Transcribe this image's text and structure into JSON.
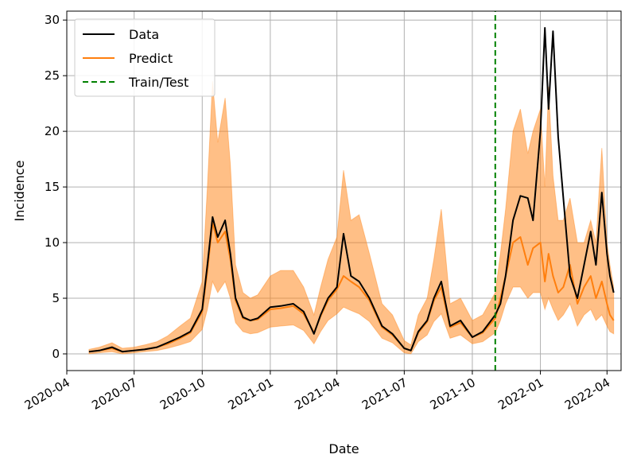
{
  "chart_data": {
    "type": "line",
    "title": "",
    "xlabel": "Date",
    "ylabel": "Incidence",
    "xlim": [
      "2020-04-01",
      "2022-04-20"
    ],
    "ylim": [
      -1.5,
      30.8
    ],
    "grid": true,
    "legend_position": "top-left",
    "x_ticks": [
      "2020-04",
      "2020-07",
      "2020-10",
      "2021-01",
      "2021-04",
      "2021-07",
      "2021-10",
      "2022-01",
      "2022-04"
    ],
    "y_ticks": [
      0,
      5,
      10,
      15,
      20,
      25,
      30
    ],
    "split_date": "2021-11-01",
    "colors": {
      "data": "#000000",
      "predict": "#ff7f0e",
      "band": "#ff7f0e",
      "split": "#008000",
      "grid": "#b0b0b0"
    },
    "series": [
      {
        "name": "Data",
        "color": "#000000",
        "x": [
          "2020-05-01",
          "2020-05-15",
          "2020-06-01",
          "2020-06-15",
          "2020-07-01",
          "2020-07-15",
          "2020-08-01",
          "2020-08-15",
          "2020-09-01",
          "2020-09-15",
          "2020-10-01",
          "2020-10-08",
          "2020-10-15",
          "2020-10-22",
          "2020-11-01",
          "2020-11-08",
          "2020-11-15",
          "2020-11-25",
          "2020-12-05",
          "2020-12-15",
          "2021-01-01",
          "2021-01-15",
          "2021-02-01",
          "2021-02-15",
          "2021-03-01",
          "2021-03-10",
          "2021-03-20",
          "2021-04-01",
          "2021-04-10",
          "2021-04-20",
          "2021-05-01",
          "2021-05-15",
          "2021-06-01",
          "2021-06-15",
          "2021-07-01",
          "2021-07-10",
          "2021-07-20",
          "2021-08-01",
          "2021-08-10",
          "2021-08-20",
          "2021-09-01",
          "2021-09-15",
          "2021-10-01",
          "2021-10-15",
          "2021-11-01",
          "2021-11-08",
          "2021-11-15",
          "2021-11-25",
          "2021-12-05",
          "2021-12-15",
          "2021-12-22",
          "2022-01-01",
          "2022-01-07",
          "2022-01-12",
          "2022-01-18",
          "2022-01-25",
          "2022-02-01",
          "2022-02-10",
          "2022-02-20",
          "2022-03-01",
          "2022-03-10",
          "2022-03-17",
          "2022-03-25",
          "2022-04-01",
          "2022-04-05",
          "2022-04-10"
        ],
        "y": [
          0.2,
          0.3,
          0.6,
          0.2,
          0.3,
          0.4,
          0.6,
          1.0,
          1.5,
          2.0,
          4.0,
          8.0,
          12.3,
          10.5,
          12.0,
          9.0,
          5.0,
          3.3,
          3.0,
          3.2,
          4.2,
          4.3,
          4.5,
          3.8,
          1.8,
          3.5,
          5.0,
          6.0,
          10.8,
          7.0,
          6.5,
          5.0,
          2.5,
          1.8,
          0.5,
          0.3,
          2.0,
          3.0,
          5.0,
          6.5,
          2.5,
          3.0,
          1.5,
          2.0,
          3.5,
          4.5,
          7.0,
          12.0,
          14.2,
          14.0,
          12.0,
          20.0,
          29.3,
          22.0,
          29.0,
          19.5,
          14.0,
          7.0,
          5.0,
          8.0,
          11.0,
          8.0,
          14.5,
          9.0,
          7.0,
          5.5
        ]
      },
      {
        "name": "Predict",
        "color": "#ff7f0e",
        "x": [
          "2020-05-01",
          "2020-05-15",
          "2020-06-01",
          "2020-06-15",
          "2020-07-01",
          "2020-07-15",
          "2020-08-01",
          "2020-08-15",
          "2020-09-01",
          "2020-09-15",
          "2020-10-01",
          "2020-10-08",
          "2020-10-15",
          "2020-10-22",
          "2020-11-01",
          "2020-11-08",
          "2020-11-15",
          "2020-11-25",
          "2020-12-05",
          "2020-12-15",
          "2021-01-01",
          "2021-01-15",
          "2021-02-01",
          "2021-02-15",
          "2021-03-01",
          "2021-03-10",
          "2021-03-20",
          "2021-04-01",
          "2021-04-10",
          "2021-04-20",
          "2021-05-01",
          "2021-05-15",
          "2021-06-01",
          "2021-06-15",
          "2021-07-01",
          "2021-07-10",
          "2021-07-20",
          "2021-08-01",
          "2021-08-10",
          "2021-08-20",
          "2021-09-01",
          "2021-09-15",
          "2021-10-01",
          "2021-10-15",
          "2021-11-01",
          "2021-11-08",
          "2021-11-15",
          "2021-11-25",
          "2021-12-05",
          "2021-12-15",
          "2021-12-22",
          "2022-01-01",
          "2022-01-07",
          "2022-01-12",
          "2022-01-18",
          "2022-01-25",
          "2022-02-01",
          "2022-02-10",
          "2022-02-20",
          "2022-03-01",
          "2022-03-10",
          "2022-03-17",
          "2022-03-25",
          "2022-04-01",
          "2022-04-05",
          "2022-04-10"
        ],
        "y": [
          0.2,
          0.3,
          0.5,
          0.2,
          0.3,
          0.4,
          0.6,
          0.9,
          1.4,
          1.9,
          3.8,
          7.5,
          11.8,
          10.0,
          11.0,
          8.5,
          4.8,
          3.2,
          3.0,
          3.1,
          4.0,
          4.1,
          4.3,
          3.6,
          1.9,
          3.4,
          4.8,
          5.8,
          7.0,
          6.5,
          6.0,
          4.8,
          2.4,
          1.7,
          0.5,
          0.3,
          1.9,
          2.9,
          4.8,
          6.0,
          2.4,
          2.8,
          1.5,
          1.9,
          3.2,
          5.0,
          7.0,
          10.0,
          10.5,
          8.0,
          9.5,
          10.0,
          6.5,
          9.0,
          7.0,
          5.5,
          6.0,
          8.0,
          4.5,
          6.0,
          7.0,
          5.0,
          6.5,
          4.5,
          3.5,
          3.0
        ]
      },
      {
        "name": "Train/Test",
        "color": "#008000",
        "x": [
          "2021-11-01",
          "2021-11-01"
        ],
        "y": [
          -1.5,
          30.8
        ]
      }
    ],
    "band": {
      "x": [
        "2020-05-01",
        "2020-05-15",
        "2020-06-01",
        "2020-06-15",
        "2020-07-01",
        "2020-07-15",
        "2020-08-01",
        "2020-08-15",
        "2020-09-01",
        "2020-09-15",
        "2020-10-01",
        "2020-10-08",
        "2020-10-15",
        "2020-10-22",
        "2020-11-01",
        "2020-11-08",
        "2020-11-15",
        "2020-11-25",
        "2020-12-05",
        "2020-12-15",
        "2021-01-01",
        "2021-01-15",
        "2021-02-01",
        "2021-02-15",
        "2021-03-01",
        "2021-03-10",
        "2021-03-20",
        "2021-04-01",
        "2021-04-10",
        "2021-04-20",
        "2021-05-01",
        "2021-05-15",
        "2021-06-01",
        "2021-06-15",
        "2021-07-01",
        "2021-07-10",
        "2021-07-20",
        "2021-08-01",
        "2021-08-10",
        "2021-08-20",
        "2021-09-01",
        "2021-09-15",
        "2021-10-01",
        "2021-10-15",
        "2021-11-01",
        "2021-11-08",
        "2021-11-15",
        "2021-11-25",
        "2021-12-05",
        "2021-12-15",
        "2021-12-22",
        "2022-01-01",
        "2022-01-07",
        "2022-01-12",
        "2022-01-18",
        "2022-01-25",
        "2022-02-01",
        "2022-02-10",
        "2022-02-20",
        "2022-03-01",
        "2022-03-10",
        "2022-03-17",
        "2022-03-25",
        "2022-04-01",
        "2022-04-05",
        "2022-04-10"
      ],
      "upper": [
        0.4,
        0.6,
        1.0,
        0.5,
        0.6,
        0.8,
        1.1,
        1.6,
        2.5,
        3.2,
        6.5,
        15.0,
        24.5,
        19.0,
        23.0,
        17.0,
        8.0,
        5.5,
        5.0,
        5.3,
        7.0,
        7.5,
        7.5,
        6.0,
        3.5,
        6.0,
        8.5,
        10.5,
        16.5,
        12.0,
        12.5,
        9.0,
        4.5,
        3.5,
        1.2,
        0.8,
        3.5,
        5.0,
        8.5,
        13.0,
        4.5,
        5.0,
        3.0,
        3.5,
        5.5,
        9.0,
        13.0,
        20.0,
        22.0,
        18.0,
        20.0,
        22.0,
        15.0,
        24.0,
        16.0,
        12.0,
        12.0,
        14.0,
        10.0,
        10.0,
        12.0,
        10.0,
        18.5,
        10.0,
        8.0,
        6.0
      ],
      "lower": [
        0.0,
        0.1,
        0.2,
        0.0,
        0.1,
        0.2,
        0.3,
        0.5,
        0.8,
        1.1,
        2.2,
        4.0,
        6.5,
        5.5,
        6.5,
        5.0,
        2.8,
        2.0,
        1.8,
        1.9,
        2.4,
        2.5,
        2.6,
        2.1,
        0.9,
        2.0,
        3.0,
        3.6,
        4.2,
        3.9,
        3.6,
        2.9,
        1.4,
        1.0,
        0.1,
        0.0,
        1.1,
        1.7,
        2.9,
        3.6,
        1.4,
        1.7,
        0.9,
        1.1,
        1.9,
        3.0,
        4.5,
        6.0,
        6.0,
        5.0,
        5.5,
        5.5,
        4.0,
        5.0,
        4.0,
        3.0,
        3.5,
        4.5,
        2.5,
        3.5,
        4.0,
        3.0,
        3.5,
        2.5,
        2.0,
        1.8
      ]
    }
  }
}
